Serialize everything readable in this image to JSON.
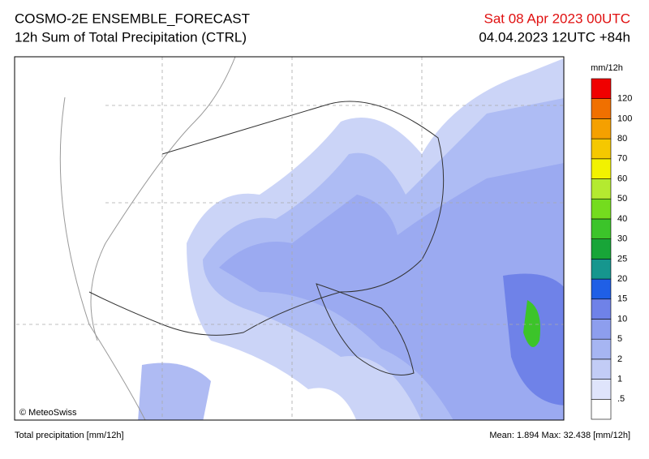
{
  "header": {
    "title": "COSMO-2E ENSEMBLE_FORECAST",
    "subtitle": "12h Sum of Total Precipitation (CTRL)",
    "valid_time": "Sat 08 Apr 2023 00UTC",
    "run": "04.04.2023 12UTC +84h"
  },
  "legend": {
    "unit": "mm/12h",
    "levels": [
      ".5",
      "1",
      "2",
      "5",
      "10",
      "15",
      "20",
      "25",
      "30",
      "40",
      "50",
      "60",
      "70",
      "80",
      "100",
      "120"
    ],
    "colors": [
      "#ffffff",
      "#dfe4fb",
      "#c2ccf6",
      "#a6b5f2",
      "#8d9eee",
      "#6f82e8",
      "#1f5fe6",
      "#16968e",
      "#18a538",
      "#3cc42a",
      "#74dc1e",
      "#b4ea30",
      "#f2f200",
      "#f5c800",
      "#f5a000",
      "#f07000",
      "#f00000"
    ]
  },
  "map": {
    "copyright": "© MeteoSwiss"
  },
  "footer": {
    "left": "Total precipitation [mm/12h]",
    "right": "Mean:  1.894 Max: 32.438 [mm/12h]"
  }
}
